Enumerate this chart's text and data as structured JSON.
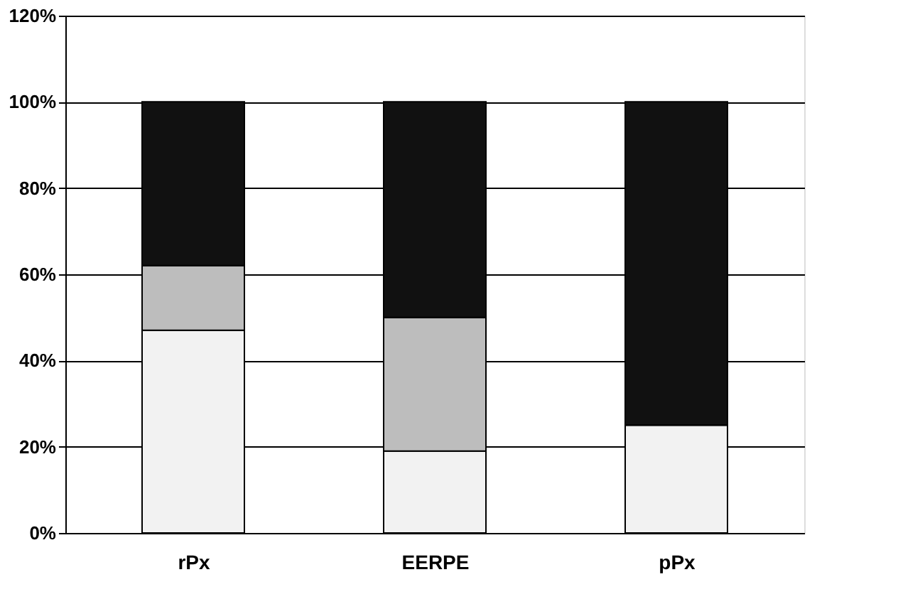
{
  "chart_data": {
    "type": "bar",
    "stacked": true,
    "categories": [
      "rPx",
      "EERPE",
      "pPx"
    ],
    "series": [
      {
        "color": "#f2f2f2",
        "values": [
          47,
          19,
          25
        ]
      },
      {
        "color": "#bdbdbd",
        "values": [
          15,
          31,
          0
        ]
      },
      {
        "color": "#111111",
        "values": [
          38,
          50,
          75
        ]
      }
    ],
    "ylim": [
      0,
      120
    ],
    "yticks": [
      {
        "value": 0,
        "label": "0%"
      },
      {
        "value": 20,
        "label": "20%"
      },
      {
        "value": 40,
        "label": "40%"
      },
      {
        "value": 60,
        "label": "60%"
      },
      {
        "value": 80,
        "label": "80%"
      },
      {
        "value": 100,
        "label": "100%"
      },
      {
        "value": 120,
        "label": "120%"
      }
    ],
    "grid": "y",
    "legend": false
  }
}
